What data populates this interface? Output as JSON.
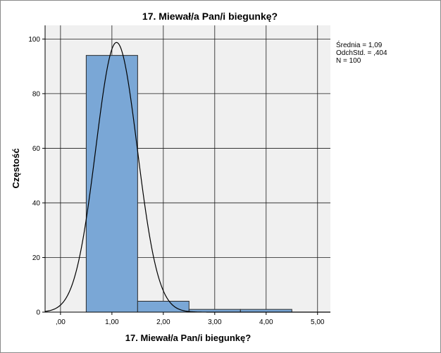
{
  "chart_data": {
    "type": "bar",
    "title": "17. Miewał/a Pan/i biegunkę?",
    "xlabel": "17. Miewał/a Pan/i biegunkę?",
    "ylabel": "Częstość",
    "xlim": [
      -0.3,
      5.25
    ],
    "ylim": [
      0,
      105
    ],
    "x_ticks": [
      0,
      1,
      2,
      3,
      4,
      5
    ],
    "x_tick_labels": [
      ",00",
      "1,00",
      "2,00",
      "3,00",
      "4,00",
      "5,00"
    ],
    "y_ticks": [
      0,
      20,
      40,
      60,
      80,
      100
    ],
    "y_tick_labels": [
      "0",
      "20",
      "40",
      "60",
      "80",
      "100"
    ],
    "bins": [
      {
        "from": 0.5,
        "to": 1.5,
        "value": 94
      },
      {
        "from": 1.5,
        "to": 2.5,
        "value": 4
      },
      {
        "from": 2.5,
        "to": 3.5,
        "value": 1
      },
      {
        "from": 3.5,
        "to": 4.5,
        "value": 1
      }
    ],
    "normal_curve": {
      "mean": 1.09,
      "sd": 0.404,
      "n": 100
    },
    "grid": true,
    "colors": {
      "bar_fill": "#7aa7d6",
      "bar_stroke": "#2b2b2b",
      "plot_bg": "#f0f0f0",
      "grid": "#1a1a1a"
    },
    "stats": {
      "mean_label": "Średnia = 1,09",
      "sd_label": "OdchStd. = ,404",
      "n_label": "N = 100"
    }
  }
}
